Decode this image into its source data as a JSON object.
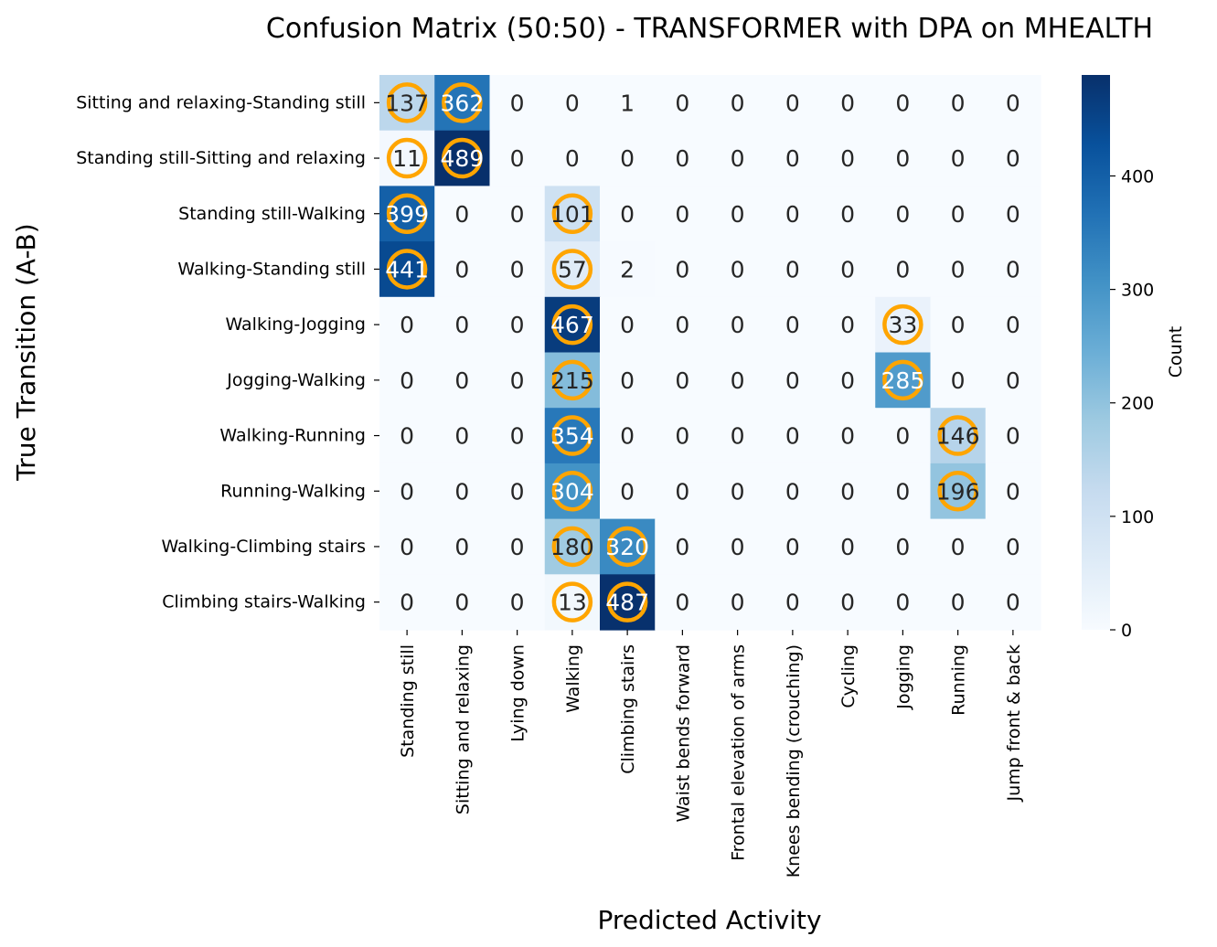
{
  "chart_data": {
    "type": "heatmap",
    "title": "Confusion Matrix (50:50) - TRANSFORMER with DPA on MHEALTH",
    "xlabel": "Predicted Activity",
    "ylabel": "True Transition (A-B)",
    "colorbar_label": "Count",
    "colorbar_ticks": [
      0,
      100,
      200,
      300,
      400
    ],
    "value_range": [
      0,
      489
    ],
    "colormap": "Blues",
    "highlight_color": "#FFA500",
    "x_categories": [
      "Standing still",
      "Sitting and relaxing",
      "Lying down",
      "Walking",
      "Climbing stairs",
      "Waist bends forward",
      "Frontal elevation of arms",
      "Knees bending (crouching)",
      "Cycling",
      "Jogging",
      "Running",
      "Jump front & back"
    ],
    "y_categories": [
      "Sitting and relaxing-Standing still",
      "Standing still-Sitting and relaxing",
      "Standing still-Walking",
      "Walking-Standing still",
      "Walking-Jogging",
      "Jogging-Walking",
      "Walking-Running",
      "Running-Walking",
      "Walking-Climbing stairs",
      "Climbing stairs-Walking"
    ],
    "values": [
      [
        137,
        362,
        0,
        0,
        1,
        0,
        0,
        0,
        0,
        0,
        0,
        0
      ],
      [
        11,
        489,
        0,
        0,
        0,
        0,
        0,
        0,
        0,
        0,
        0,
        0
      ],
      [
        399,
        0,
        0,
        101,
        0,
        0,
        0,
        0,
        0,
        0,
        0,
        0
      ],
      [
        441,
        0,
        0,
        57,
        2,
        0,
        0,
        0,
        0,
        0,
        0,
        0
      ],
      [
        0,
        0,
        0,
        467,
        0,
        0,
        0,
        0,
        0,
        33,
        0,
        0
      ],
      [
        0,
        0,
        0,
        215,
        0,
        0,
        0,
        0,
        0,
        285,
        0,
        0
      ],
      [
        0,
        0,
        0,
        354,
        0,
        0,
        0,
        0,
        0,
        0,
        146,
        0
      ],
      [
        0,
        0,
        0,
        304,
        0,
        0,
        0,
        0,
        0,
        0,
        196,
        0
      ],
      [
        0,
        0,
        0,
        180,
        320,
        0,
        0,
        0,
        0,
        0,
        0,
        0
      ],
      [
        0,
        0,
        0,
        13,
        487,
        0,
        0,
        0,
        0,
        0,
        0,
        0
      ]
    ],
    "highlighted_cells": [
      [
        0,
        0
      ],
      [
        0,
        1
      ],
      [
        1,
        0
      ],
      [
        1,
        1
      ],
      [
        2,
        0
      ],
      [
        2,
        3
      ],
      [
        3,
        0
      ],
      [
        3,
        3
      ],
      [
        4,
        3
      ],
      [
        4,
        9
      ],
      [
        5,
        3
      ],
      [
        5,
        9
      ],
      [
        6,
        3
      ],
      [
        6,
        10
      ],
      [
        7,
        3
      ],
      [
        7,
        10
      ],
      [
        8,
        3
      ],
      [
        8,
        4
      ],
      [
        9,
        3
      ],
      [
        9,
        4
      ]
    ]
  }
}
